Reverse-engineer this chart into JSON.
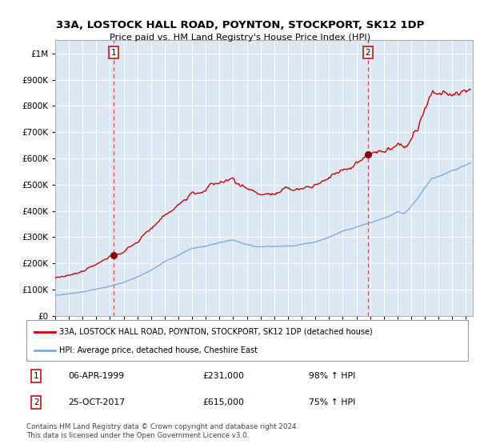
{
  "title": "33A, LOSTOCK HALL ROAD, POYNTON, STOCKPORT, SK12 1DP",
  "subtitle": "Price paid vs. HM Land Registry's House Price Index (HPI)",
  "legend_red": "33A, LOSTOCK HALL ROAD, POYNTON, STOCKPORT, SK12 1DP (detached house)",
  "legend_blue": "HPI: Average price, detached house, Cheshire East",
  "annotation1_label": "1",
  "annotation1_date": "06-APR-1999",
  "annotation1_price": "£231,000",
  "annotation1_pct": "98% ↑ HPI",
  "annotation2_label": "2",
  "annotation2_date": "25-OCT-2017",
  "annotation2_price": "£615,000",
  "annotation2_pct": "75% ↑ HPI",
  "footer": "Contains HM Land Registry data © Crown copyright and database right 2024.\nThis data is licensed under the Open Government Licence v3.0.",
  "sale1_year": 1999.27,
  "sale1_value": 231000,
  "sale2_year": 2017.81,
  "sale2_value": 615000,
  "ylim_min": 0,
  "ylim_max": 1050000,
  "xlim_min": 1995.0,
  "xlim_max": 2025.5,
  "background_color": "#dce9f5",
  "red_color": "#cc0000",
  "blue_color": "#7aaddb",
  "grid_color": "#ffffff",
  "dashed_line_color": "#dd4444",
  "marker_color": "#880000"
}
